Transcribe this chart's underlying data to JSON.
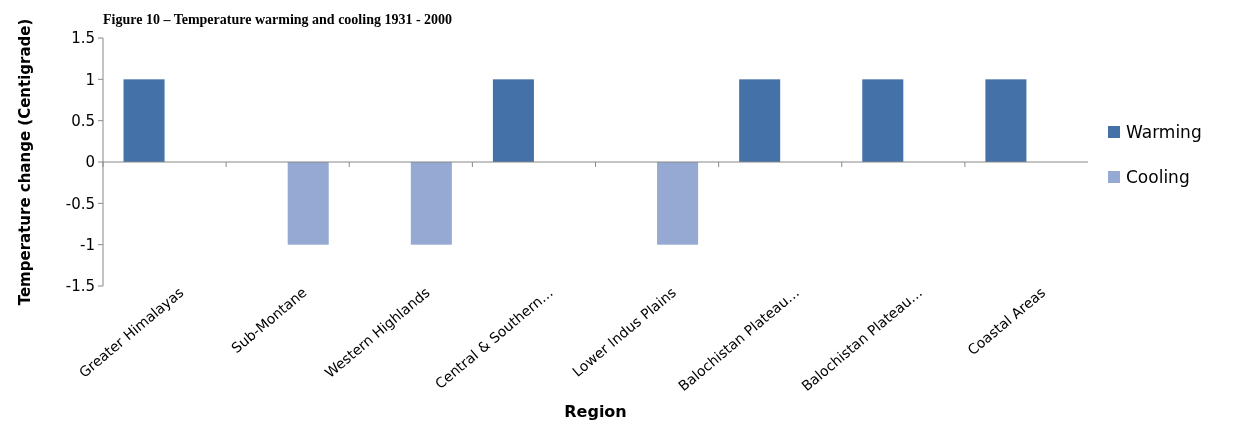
{
  "chart_data": {
    "type": "bar",
    "title": "Figure 10 – Temperature warming and cooling 1931 - 2000",
    "xlabel": "Region",
    "ylabel": "Temperature change (Centigrade)",
    "categories": [
      "Greater Himalayas",
      "Sub-Montane",
      "Western Highlands",
      "Central & Southern…",
      "Lower Indus Plains",
      "Balochistan Plateau…",
      "Balochistan Plateau…",
      "Coastal Areas"
    ],
    "series": [
      {
        "name": "Warming",
        "color": "#4472a8",
        "values": [
          1,
          null,
          null,
          1,
          null,
          1,
          1,
          1
        ]
      },
      {
        "name": "Cooling",
        "color": "#95a9d3",
        "values": [
          null,
          -1,
          -1,
          null,
          -1,
          null,
          null,
          null
        ]
      }
    ],
    "ylim": [
      -1.5,
      1.5
    ],
    "yticks": [
      -1.5,
      -1,
      -0.5,
      0,
      0.5,
      1,
      1.5
    ],
    "legend": "right"
  }
}
